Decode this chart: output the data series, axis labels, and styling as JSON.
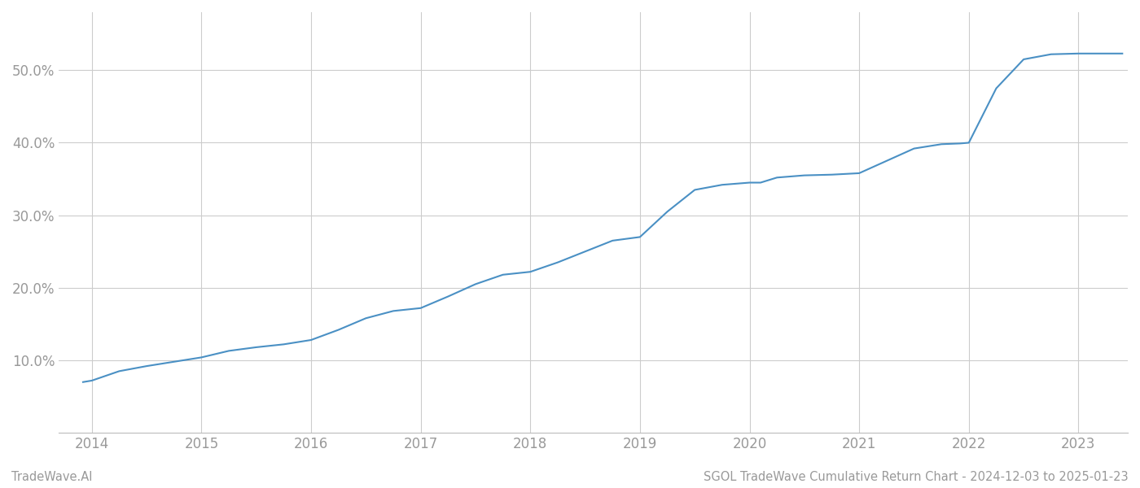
{
  "title": "",
  "footer_left": "TradeWave.AI",
  "footer_right": "SGOL TradeWave Cumulative Return Chart - 2024-12-03 to 2025-01-23",
  "line_color": "#4a90c4",
  "background_color": "#ffffff",
  "grid_color": "#cccccc",
  "x_years": [
    2014,
    2015,
    2016,
    2017,
    2018,
    2019,
    2020,
    2021,
    2022,
    2023
  ],
  "x_data": [
    2013.92,
    2014.0,
    2014.25,
    2014.5,
    2014.75,
    2015.0,
    2015.25,
    2015.5,
    2015.75,
    2016.0,
    2016.25,
    2016.5,
    2016.75,
    2017.0,
    2017.25,
    2017.5,
    2017.75,
    2018.0,
    2018.25,
    2018.5,
    2018.75,
    2019.0,
    2019.25,
    2019.5,
    2019.75,
    2020.0,
    2020.1,
    2020.25,
    2020.5,
    2020.75,
    2021.0,
    2021.25,
    2021.5,
    2021.75,
    2021.92,
    2022.0,
    2022.1,
    2022.25,
    2022.5,
    2022.75,
    2023.0,
    2023.25,
    2023.4
  ],
  "y_data": [
    7.0,
    7.2,
    8.5,
    9.2,
    9.8,
    10.4,
    11.3,
    11.8,
    12.2,
    12.8,
    14.2,
    15.8,
    16.8,
    17.2,
    18.8,
    20.5,
    21.8,
    22.2,
    23.5,
    25.0,
    26.5,
    27.0,
    30.5,
    33.5,
    34.2,
    34.5,
    34.5,
    35.2,
    35.5,
    35.6,
    35.8,
    37.5,
    39.2,
    39.8,
    39.9,
    40.0,
    43.0,
    47.5,
    51.5,
    52.2,
    52.3,
    52.3,
    52.3
  ],
  "ylim": [
    0,
    58
  ],
  "yticks": [
    10.0,
    20.0,
    30.0,
    40.0,
    50.0
  ],
  "xlim": [
    2013.7,
    2023.45
  ],
  "line_width": 1.5,
  "tick_label_color": "#999999",
  "footer_fontsize": 10.5,
  "tick_fontsize": 12
}
